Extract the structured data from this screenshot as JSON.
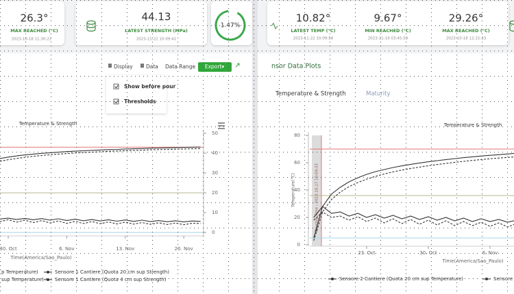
{
  "left": {
    "cards": [
      {
        "value": "26.3°",
        "label": "MAX REACHED (°C)",
        "date": "2023-10-18 11:30:22"
      },
      {
        "value": "44.13",
        "label": "LATEST STRENGTH (MPa)",
        "date": "2023-11-22 10:09:41"
      }
    ],
    "gauge": "1.47%",
    "toolbar": [
      "Display",
      "Data",
      "Data Range",
      "Export▾"
    ],
    "menu": [
      "Show before pour",
      "Thresholds"
    ]
  },
  "right": {
    "cards": [
      {
        "value": "10.82°",
        "label": "LATEST TEMP (°C)",
        "date": "2023-11-22 10:09:58"
      },
      {
        "value": "9.67°",
        "label": "MIN REACHED (°C)",
        "date": "2023-11-19 03:45:53"
      },
      {
        "value": "29.26°",
        "label": "MAX REACHED (°C)",
        "date": "2023-10-18 12:15:33"
      }
    ],
    "heading": "nsor Data Plots",
    "tabs": [
      "Temperature & Strength",
      "Maturity"
    ]
  },
  "chart_data": [
    {
      "type": "line",
      "title": "Temperature & Strength",
      "x_label": "Time(America/Sao_Paulo)",
      "categories": [
        null,
        null,
        null,
        "30. Oct",
        null,
        null,
        null,
        null,
        null,
        null,
        "6. Nov",
        null,
        null,
        null,
        null,
        null,
        null,
        "13. Nov",
        null,
        null,
        null,
        null,
        null,
        null,
        "20. Nov",
        null,
        null
      ],
      "ylim": [
        0,
        50
      ],
      "yticks": [
        0,
        10,
        20,
        30,
        40,
        50
      ],
      "thresholds": [
        {
          "value": 43,
          "color": "#e57373"
        },
        {
          "value": 20,
          "color": "#b8b68c"
        },
        {
          "value": 0,
          "color": "#9fd3ea"
        }
      ],
      "series": [
        {
          "name": "p Temperature)",
          "color": "#333333",
          "dashed": false,
          "values": [
            7,
            7.5,
            6.8,
            7.2,
            6.5,
            7.1,
            6.4,
            7,
            6.2,
            6.9,
            6,
            6.7,
            5.9,
            6.5,
            5.8,
            6.4,
            5.7,
            6.3,
            5.6,
            6.2,
            5.5,
            6,
            5.4,
            5.9,
            5.3,
            5.8,
            5.6
          ]
        },
        {
          "name": "Sensore 1 Cantiere (Quota 20 cm sup Strength)",
          "color": "#333333",
          "dashed": false,
          "values": [
            35.5,
            36.5,
            37.3,
            38,
            38.6,
            39.1,
            39.5,
            39.9,
            40.2,
            40.5,
            40.8,
            41,
            41.2,
            41.4,
            41.6,
            41.8,
            41.9,
            42.1,
            42.2,
            42.3,
            42.5,
            42.6,
            42.7,
            42.8,
            42.9,
            43,
            43.1
          ]
        },
        {
          "name": "sup Temperature)",
          "color": "#333333",
          "dashed": true,
          "values": [
            6,
            6.8,
            5.5,
            6.4,
            5.2,
            6.2,
            5,
            6,
            4.8,
            5.8,
            4.6,
            5.6,
            4.5,
            5.5,
            4.4,
            5.3,
            4.3,
            5.2,
            4.2,
            5,
            4.1,
            4.9,
            4,
            4.8,
            3.9,
            4.7,
            4.5
          ]
        },
        {
          "name": "Sensore 1 Cantiere (Quota 4 cm sup Strength)",
          "color": "#333333",
          "dashed": true,
          "values": [
            34,
            35,
            35.9,
            36.7,
            37.3,
            37.9,
            38.4,
            38.8,
            39.2,
            39.5,
            39.8,
            40.1,
            40.3,
            40.5,
            40.7,
            40.9,
            41.1,
            41.2,
            41.4,
            41.5,
            41.7,
            41.8,
            41.9,
            42,
            42.1,
            42.2,
            42.3
          ]
        }
      ]
    },
    {
      "type": "line",
      "title": "Temperature & Strength",
      "x_label": "Time(America/Sao_Paulo)",
      "y_label": "Temperature(°C)",
      "annotation": "Pouring Time : 2023-10-17 10:09:33",
      "categories": [
        null,
        null,
        null,
        null,
        null,
        null,
        "23. Oct",
        null,
        null,
        null,
        null,
        null,
        null,
        "30. Oct",
        null,
        null,
        null,
        null,
        null,
        null,
        "6. Nov",
        null,
        null,
        null
      ],
      "ylim": [
        0,
        80
      ],
      "yticks": [
        0,
        20,
        40,
        60,
        80
      ],
      "thresholds": [
        {
          "value": 70,
          "color": "#e57373"
        },
        {
          "value": 36,
          "color": "#b8b68c"
        },
        {
          "value": 5,
          "color": "#9fd3ea"
        }
      ],
      "series": [
        {
          "name": "Sensore 2 Cantiere (Quota 20 cm sup Temperature)",
          "color": "#333333",
          "dashed": false,
          "values": [
            20,
            28,
            23,
            24,
            21,
            23,
            20,
            22,
            19.5,
            21.5,
            19,
            21,
            18.5,
            20.5,
            18,
            20,
            17.5,
            19.5,
            17,
            19,
            17,
            18.5,
            16.5,
            18
          ]
        },
        {
          "name": "Sensore 2",
          "color": "#333333",
          "dashed": false,
          "values": [
            5,
            28,
            37,
            42,
            46,
            49,
            51.5,
            53.5,
            55,
            56.5,
            57.7,
            58.8,
            59.8,
            60.7,
            61.5,
            62.3,
            63,
            63.7,
            64.3,
            64.9,
            65.4,
            65.9,
            66.4,
            66.9
          ]
        },
        {
          "color": "#333333",
          "dashed": true,
          "values": [
            18,
            24,
            20,
            21,
            18,
            20.5,
            17,
            19.5,
            16,
            19,
            15.5,
            18.5,
            15,
            18,
            14.5,
            17.5,
            14,
            17,
            14,
            16.5,
            13.5,
            16,
            13,
            15.5
          ]
        },
        {
          "color": "#333333",
          "dashed": true,
          "values": [
            3,
            24,
            33,
            38.5,
            42.5,
            45.5,
            48,
            50,
            51.8,
            53.3,
            54.6,
            55.8,
            56.8,
            57.8,
            58.7,
            59.5,
            60.3,
            61,
            61.7,
            62.3,
            62.9,
            63.4,
            63.9,
            64.4
          ]
        }
      ]
    }
  ]
}
